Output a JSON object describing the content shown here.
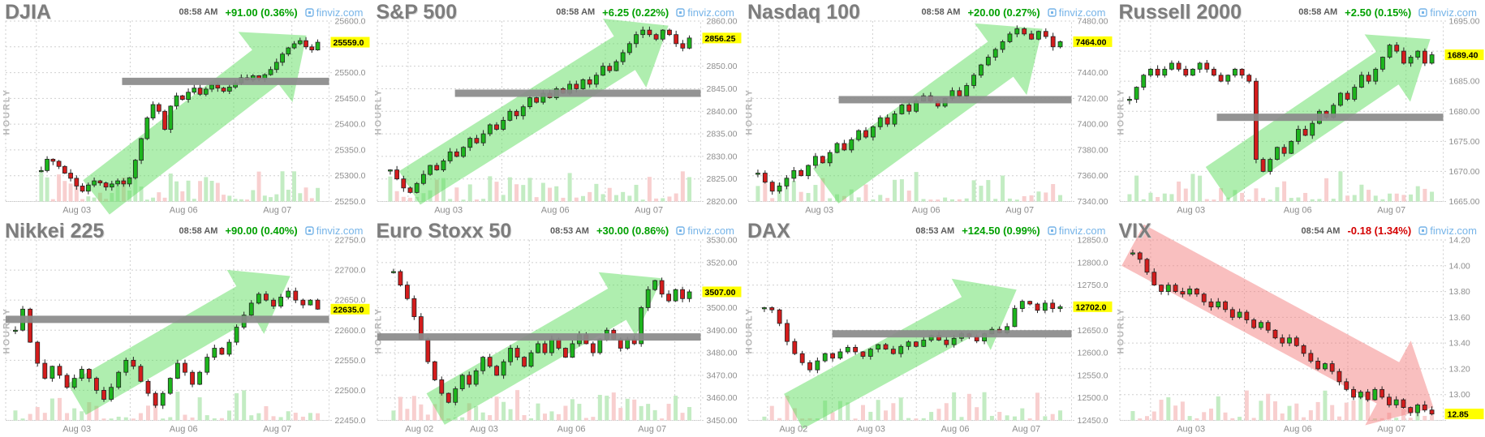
{
  "branding": {
    "link_label": "finviz.com",
    "link_color": "#76b4e8"
  },
  "timeframe_label": "HOURLY",
  "colors": {
    "title_text": "#7d7d7d",
    "time_text": "#5d5d5d",
    "axis_text": "#8e8e8e",
    "grid": "#cfcfcf",
    "up": "#00a000",
    "down": "#d40000",
    "candle_up": "#1db51d",
    "candle_down": "#d41c1c",
    "candle_stroke": "#222222",
    "vol_up": "#c3ecc3",
    "vol_down": "#f8cfcf",
    "arrow_up": "#5fdd5f",
    "arrow_down": "#f37f7f",
    "resistance_bar": "#8a8a8a",
    "highlight_bg": "#ffff00",
    "highlight_text": "#000000"
  },
  "chart_data": [
    {
      "type": "candlestick",
      "timeframe": "hourly",
      "title": "DJIA",
      "time": "08:58 AM",
      "change": "+91.00 (0.36%)",
      "direction": "up",
      "ymin": 25250,
      "ymax": 25600,
      "y_ticks": [
        "25600.0",
        "25550.0",
        "25500.0",
        "25450.0",
        "25400.0",
        "25350.0",
        "25300.0",
        "25250.0"
      ],
      "last_price": 25559.0,
      "last_label": "25559.0",
      "x_labels": [
        {
          "text": "Aug 03",
          "pos": 0.22
        },
        {
          "text": "Aug 06",
          "pos": 0.55
        },
        {
          "text": "Aug 07",
          "pos": 0.84
        }
      ],
      "vlines": [
        0.095,
        0.385,
        0.705,
        0.885
      ],
      "data_start": 0.11,
      "closes": [
        25310,
        25332,
        25328,
        25318,
        25305,
        25295,
        25280,
        25270,
        25282,
        25290,
        25286,
        25278,
        25284,
        25290,
        25284,
        25296,
        25330,
        25372,
        25412,
        25438,
        25425,
        25390,
        25435,
        25455,
        25448,
        25462,
        25470,
        25458,
        25468,
        25476,
        25470,
        25464,
        25472,
        25480,
        25490,
        25486,
        25494,
        25488,
        25496,
        25506,
        25520,
        25536,
        25548,
        25556,
        25562,
        25550,
        25544,
        25559
      ],
      "resistance": {
        "value": 25483,
        "from": 0.36,
        "to": 1.0
      },
      "arrow": {
        "dir": "up",
        "x1": 0.28,
        "y1": 25258,
        "x2": 0.93,
        "y2": 25572,
        "girth": 0.12
      }
    },
    {
      "type": "candlestick",
      "timeframe": "hourly",
      "title": "S&P 500",
      "time": "08:58 AM",
      "change": "+6.25 (0.22%)",
      "direction": "up",
      "ymin": 2820,
      "ymax": 2860,
      "y_ticks": [
        "2860.00",
        "2855.00",
        "2850.00",
        "2845.00",
        "2840.00",
        "2835.00",
        "2830.00",
        "2825.00",
        "2820.00"
      ],
      "last_price": 2856.25,
      "last_label": "2856.25",
      "x_labels": [
        {
          "text": "Aug 03",
          "pos": 0.22
        },
        {
          "text": "Aug 06",
          "pos": 0.55
        },
        {
          "text": "Aug 07",
          "pos": 0.84
        }
      ],
      "vlines": [
        0.095,
        0.385,
        0.705,
        0.885
      ],
      "data_start": 0.04,
      "closes": [
        2827,
        2825,
        2823,
        2822,
        2824,
        2826,
        2828,
        2827,
        2829,
        2831,
        2830,
        2832,
        2834,
        2833,
        2835,
        2837,
        2836,
        2838,
        2840,
        2839,
        2841,
        2843,
        2842,
        2844,
        2843,
        2845,
        2844,
        2846,
        2845,
        2847,
        2846,
        2848,
        2850,
        2849,
        2851,
        2853,
        2855,
        2857,
        2858,
        2857,
        2856,
        2858,
        2857,
        2855,
        2854,
        2856.25
      ],
      "resistance": {
        "value": 2844,
        "from": 0.24,
        "to": 1.0
      },
      "arrow": {
        "dir": "up",
        "x1": 0.1,
        "y1": 2823,
        "x2": 0.9,
        "y2": 2859,
        "girth": 0.11
      }
    },
    {
      "type": "candlestick",
      "timeframe": "hourly",
      "title": "Nasdaq 100",
      "time": "08:58 AM",
      "change": "+20.00 (0.27%)",
      "direction": "up",
      "ymin": 7340,
      "ymax": 7480,
      "y_ticks": [
        "7480.00",
        "7460.00",
        "7440.00",
        "7420.00",
        "7400.00",
        "7380.00",
        "7360.00",
        "7340.00"
      ],
      "last_price": 7464.0,
      "last_label": "7464.00",
      "x_labels": [
        {
          "text": "Aug 03",
          "pos": 0.22
        },
        {
          "text": "Aug 06",
          "pos": 0.55
        },
        {
          "text": "Aug 07",
          "pos": 0.84
        }
      ],
      "vlines": [
        0.095,
        0.385,
        0.705,
        0.885
      ],
      "data_start": 0.03,
      "closes": [
        7362,
        7355,
        7348,
        7352,
        7358,
        7364,
        7360,
        7368,
        7375,
        7370,
        7378,
        7385,
        7380,
        7388,
        7395,
        7390,
        7398,
        7405,
        7400,
        7408,
        7415,
        7410,
        7418,
        7422,
        7418,
        7414,
        7420,
        7426,
        7422,
        7430,
        7438,
        7446,
        7452,
        7458,
        7464,
        7470,
        7474,
        7470,
        7466,
        7472,
        7468,
        7460,
        7464
      ],
      "resistance": {
        "value": 7419,
        "from": 0.28,
        "to": 1.0
      },
      "arrow": {
        "dir": "up",
        "x1": 0.24,
        "y1": 7352,
        "x2": 0.91,
        "y2": 7474,
        "girth": 0.12
      }
    },
    {
      "type": "candlestick",
      "timeframe": "hourly",
      "title": "Russell 2000",
      "time": "08:58 AM",
      "change": "+2.50 (0.15%)",
      "direction": "up",
      "ymin": 1665,
      "ymax": 1695,
      "y_ticks": [
        "1695.00",
        "1690.00",
        "1685.00",
        "1680.00",
        "1675.00",
        "1670.00",
        "1665.00"
      ],
      "last_price": 1689.4,
      "last_label": "1689.40",
      "x_labels": [
        {
          "text": "Aug 03",
          "pos": 0.22
        },
        {
          "text": "Aug 06",
          "pos": 0.55
        },
        {
          "text": "Aug 07",
          "pos": 0.84
        }
      ],
      "vlines": [
        0.095,
        0.385,
        0.705,
        0.885
      ],
      "data_start": 0.03,
      "closes": [
        1682,
        1684,
        1686,
        1687,
        1686,
        1687,
        1688,
        1687,
        1686,
        1687,
        1688,
        1687,
        1686,
        1685,
        1686,
        1687,
        1686,
        1685,
        1672,
        1670,
        1672,
        1674,
        1673,
        1675,
        1677,
        1676,
        1678,
        1680,
        1679,
        1681,
        1683,
        1682,
        1684,
        1686,
        1685,
        1687,
        1689,
        1691,
        1690,
        1688,
        1689,
        1690,
        1688,
        1689.4
      ],
      "resistance": {
        "value": 1679,
        "from": 0.3,
        "to": 1.0
      },
      "arrow": {
        "dir": "up",
        "x1": 0.3,
        "y1": 1668,
        "x2": 0.96,
        "y2": 1692,
        "girth": 0.11
      }
    },
    {
      "type": "candlestick",
      "timeframe": "hourly",
      "title": "Nikkei 225",
      "time": "08:58 AM",
      "change": "+90.00 (0.40%)",
      "direction": "up",
      "ymin": 22450,
      "ymax": 22750,
      "y_ticks": [
        "22750.0",
        "22700.0",
        "22650.0",
        "22600.0",
        "22550.0",
        "22500.0",
        "22450.0"
      ],
      "last_price": 22635.0,
      "last_label": "22635.0",
      "x_labels": [
        {
          "text": "Aug 03",
          "pos": 0.22
        },
        {
          "text": "Aug 06",
          "pos": 0.55
        },
        {
          "text": "Aug 07",
          "pos": 0.84
        }
      ],
      "vlines": [
        0.095,
        0.385,
        0.705,
        0.885
      ],
      "data_start": 0.03,
      "closes": [
        22600,
        22635,
        22580,
        22545,
        22520,
        22540,
        22525,
        22505,
        22520,
        22535,
        22520,
        22500,
        22485,
        22505,
        22530,
        22550,
        22540,
        22515,
        22495,
        22475,
        22495,
        22520,
        22545,
        22530,
        22510,
        22530,
        22555,
        22570,
        22560,
        22580,
        22605,
        22625,
        22645,
        22660,
        22650,
        22640,
        22655,
        22665,
        22650,
        22642,
        22650,
        22635
      ],
      "resistance": {
        "value": 22618,
        "from": 0.0,
        "to": 1.0
      },
      "arrow": {
        "dir": "up",
        "x1": 0.22,
        "y1": 22485,
        "x2": 0.88,
        "y2": 22690,
        "girth": 0.1
      }
    },
    {
      "type": "candlestick",
      "timeframe": "hourly",
      "title": "Euro Stoxx 50",
      "time": "08:53 AM",
      "change": "+30.00 (0.86%)",
      "direction": "up",
      "ymin": 3450,
      "ymax": 3530,
      "y_ticks": [
        "3530.00",
        "3520.00",
        "3510.00",
        "3500.00",
        "3490.00",
        "3480.00",
        "3470.00",
        "3460.00",
        "3450.00"
      ],
      "last_price": 3507.0,
      "last_label": "3507.00",
      "x_labels": [
        {
          "text": "Aug 02",
          "pos": 0.13
        },
        {
          "text": "Aug 03",
          "pos": 0.33
        },
        {
          "text": "Aug 06",
          "pos": 0.6
        },
        {
          "text": "Aug 07",
          "pos": 0.85
        }
      ],
      "vlines": [
        0.055,
        0.24,
        0.47,
        0.755,
        0.92
      ],
      "data_start": 0.05,
      "closes": [
        3516,
        3510,
        3504,
        3496,
        3486,
        3476,
        3468,
        3462,
        3458,
        3464,
        3470,
        3466,
        3472,
        3478,
        3474,
        3470,
        3476,
        3482,
        3478,
        3474,
        3480,
        3484,
        3480,
        3486,
        3482,
        3478,
        3484,
        3488,
        3484,
        3480,
        3486,
        3490,
        3486,
        3482,
        3486,
        3484,
        3500,
        3508,
        3512,
        3506,
        3503,
        3508,
        3504,
        3507
      ],
      "resistance": {
        "value": 3487,
        "from": 0.0,
        "to": 1.0
      },
      "arrow": {
        "dir": "up",
        "x1": 0.18,
        "y1": 3455,
        "x2": 0.88,
        "y2": 3513,
        "girth": 0.1
      }
    },
    {
      "type": "candlestick",
      "timeframe": "hourly",
      "title": "DAX",
      "time": "08:53 AM",
      "change": "+124.50 (0.99%)",
      "direction": "up",
      "ymin": 12450,
      "ymax": 12850,
      "y_ticks": [
        "12850.0",
        "12800.0",
        "12750.0",
        "12700.0",
        "12650.0",
        "12600.0",
        "12550.0",
        "12500.0",
        "12450.0"
      ],
      "last_price": 12702.0,
      "last_label": "12702.0",
      "x_labels": [
        {
          "text": "Aug 02",
          "pos": 0.14
        },
        {
          "text": "Aug 03",
          "pos": 0.38
        },
        {
          "text": "Aug 06",
          "pos": 0.64
        },
        {
          "text": "Aug 07",
          "pos": 0.86
        }
      ],
      "vlines": [
        0.06,
        0.26,
        0.52,
        0.765,
        0.92
      ],
      "data_start": 0.05,
      "closes": [
        12700,
        12695,
        12665,
        12625,
        12598,
        12578,
        12562,
        12582,
        12598,
        12588,
        12602,
        12612,
        12602,
        12592,
        12608,
        12618,
        12608,
        12598,
        12614,
        12624,
        12614,
        12628,
        12638,
        12628,
        12618,
        12632,
        12642,
        12636,
        12626,
        12642,
        12652,
        12644,
        12658,
        12698,
        12714,
        12708,
        12694,
        12710,
        12698,
        12702
      ],
      "resistance": {
        "value": 12642,
        "from": 0.26,
        "to": 1.0
      },
      "arrow": {
        "dir": "up",
        "x1": 0.14,
        "y1": 12470,
        "x2": 0.83,
        "y2": 12740,
        "girth": 0.11
      }
    },
    {
      "type": "candlestick",
      "timeframe": "hourly",
      "title": "VIX",
      "time": "08:54 AM",
      "change": "-0.18 (1.34%)",
      "direction": "down",
      "ymin": 12.8,
      "ymax": 14.2,
      "y_ticks": [
        "14.20",
        "14.00",
        "13.80",
        "13.60",
        "13.40",
        "13.20",
        "13.00",
        "12.80"
      ],
      "last_price": 12.85,
      "last_label": "12.85",
      "x_labels": [
        {
          "text": "Aug 03",
          "pos": 0.22
        },
        {
          "text": "Aug 06",
          "pos": 0.55
        },
        {
          "text": "Aug 07",
          "pos": 0.84
        }
      ],
      "vlines": [
        0.095,
        0.385,
        0.705,
        0.885
      ],
      "data_start": 0.04,
      "closes": [
        14.1,
        14.05,
        13.95,
        13.85,
        13.8,
        13.85,
        13.8,
        13.78,
        13.82,
        13.78,
        13.72,
        13.68,
        13.72,
        13.66,
        13.6,
        13.64,
        13.58,
        13.52,
        13.56,
        13.5,
        13.44,
        13.4,
        13.44,
        13.38,
        13.32,
        13.26,
        13.2,
        13.24,
        13.18,
        13.1,
        13.04,
        12.98,
        13.02,
        12.96,
        13.04,
        12.98,
        12.92,
        12.96,
        12.9,
        12.86,
        12.92,
        12.88,
        12.85
      ],
      "resistance": null,
      "arrow": {
        "dir": "down",
        "x1": 0.04,
        "y1": 14.16,
        "x2": 0.97,
        "y2": 12.9,
        "girth": 0.13
      }
    }
  ]
}
